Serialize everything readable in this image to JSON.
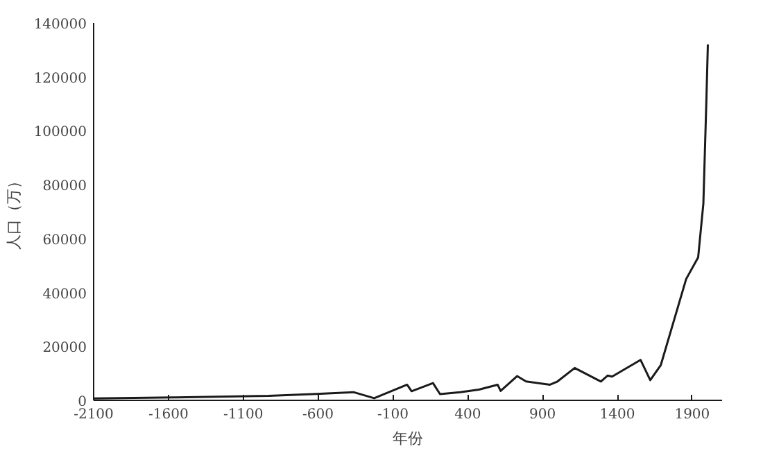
{
  "chart_data": {
    "type": "line",
    "xlabel": "年份",
    "ylabel": "人口（万）",
    "x": [
      -2100,
      -1565,
      -930,
      -610,
      -360,
      -225,
      -5,
      25,
      168,
      215,
      350,
      475,
      600,
      620,
      730,
      790,
      950,
      1000,
      1115,
      1290,
      1335,
      1365,
      1555,
      1620,
      1690,
      1860,
      1940,
      1975,
      1995,
      2005
    ],
    "series": [
      {
        "color": "#1a1a1a",
        "values": [
          700,
          1100,
          1700,
          2400,
          3000,
          800,
          5800,
          3400,
          6400,
          2300,
          3000,
          4000,
          5800,
          3500,
          9000,
          7000,
          5800,
          7000,
          12000,
          7000,
          9200,
          8800,
          15000,
          7500,
          13000,
          45000,
          53000,
          73000,
          111000,
          132000
        ]
      }
    ],
    "xlim": [
      -2100,
      2100
    ],
    "ylim": [
      0,
      140000
    ],
    "xticks": [
      {
        "value": -2100,
        "label": "-2100"
      },
      {
        "value": -1600,
        "label": "-1600"
      },
      {
        "value": -1100,
        "label": "-1100"
      },
      {
        "value": -600,
        "label": "-600"
      },
      {
        "value": -100,
        "label": "-100"
      },
      400,
      900,
      1400,
      1900
    ],
    "yticks": [
      0,
      20000,
      40000,
      60000,
      80000,
      100000,
      120000,
      140000
    ],
    "grid": false,
    "marker": "none",
    "line_style": "solid"
  }
}
